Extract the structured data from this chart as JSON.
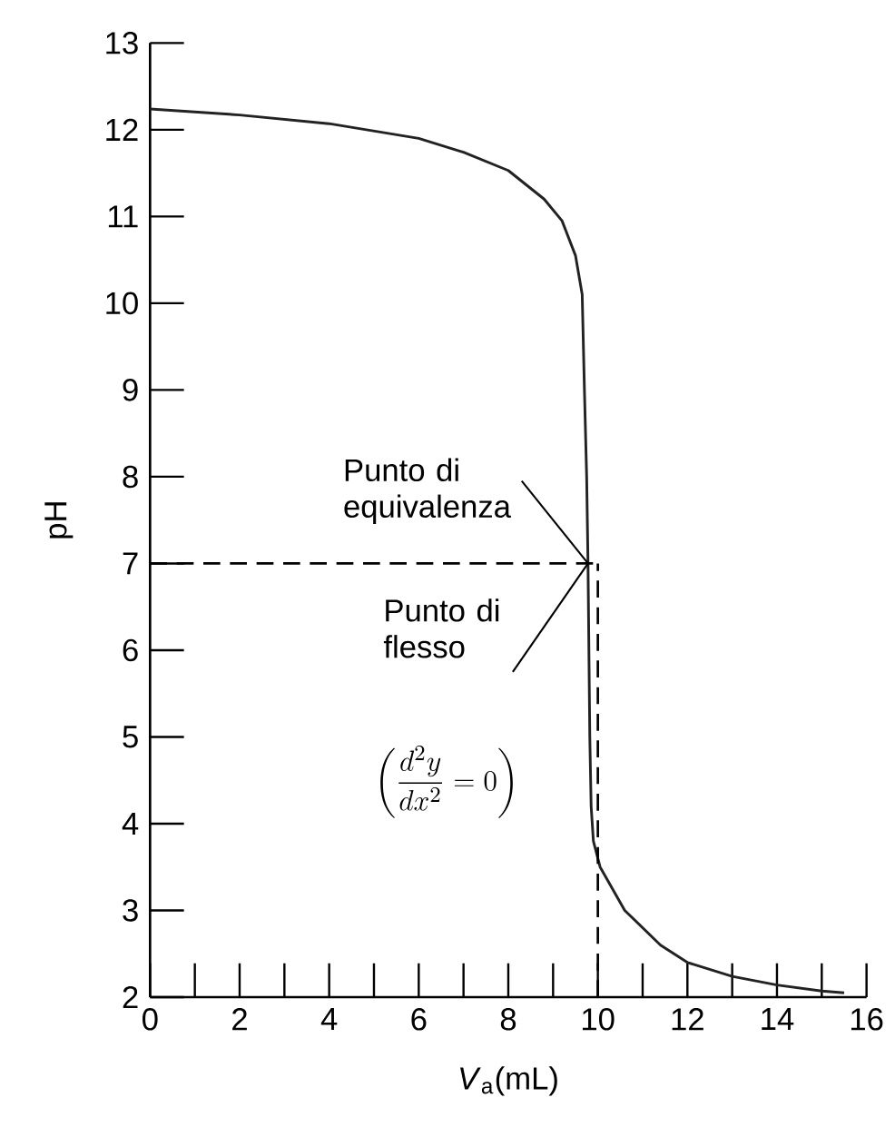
{
  "chart_data": {
    "type": "line",
    "xlabel": "*V*$_{a}$(mL)",
    "ylabel": "pH",
    "xlim": [
      0,
      16
    ],
    "ylim": [
      2,
      13
    ],
    "xticks": [
      0,
      2,
      4,
      6,
      8,
      10,
      12,
      14,
      16
    ],
    "yticks": [
      2,
      3,
      4,
      5,
      6,
      7,
      8,
      9,
      10,
      11,
      12,
      13
    ],
    "x": [
      0,
      2,
      4,
      6,
      7,
      8,
      8.8,
      9.2,
      9.5,
      9.65,
      9.7,
      9.75,
      9.78,
      9.8,
      9.82,
      9.85,
      9.9,
      10.05,
      10.6,
      11.4,
      12,
      13,
      14,
      15,
      15.5
    ],
    "series": [
      {
        "color": "#222222",
        "values": [
          12.24,
          12.17,
          12.07,
          11.9,
          11.74,
          11.53,
          11.2,
          10.95,
          10.55,
          10.1,
          9,
          8,
          7,
          6,
          5,
          4.2,
          3.8,
          3.5,
          3.0,
          2.6,
          2.4,
          2.24,
          2.14,
          2.07,
          2.05
        ]
      }
    ],
    "ref_lines": [
      {
        "axis": "y",
        "value": 7,
        "line_style": "dashed",
        "color": "#000000"
      },
      {
        "axis": "x",
        "value": 10,
        "line_style": "dashed",
        "color": "#000000"
      }
    ],
    "annotations": [
      {
        "text": "Punto di equivalenza",
        "x": 9.78,
        "y": 7
      },
      {
        "text": "Punto di flesso",
        "x": 9.78,
        "y": 7
      },
      "\\left(\\dfrac{d^{2}y}{dx^{2}}=0\\right)"
    ],
    "marker": "none",
    "line_style": "solid"
  }
}
